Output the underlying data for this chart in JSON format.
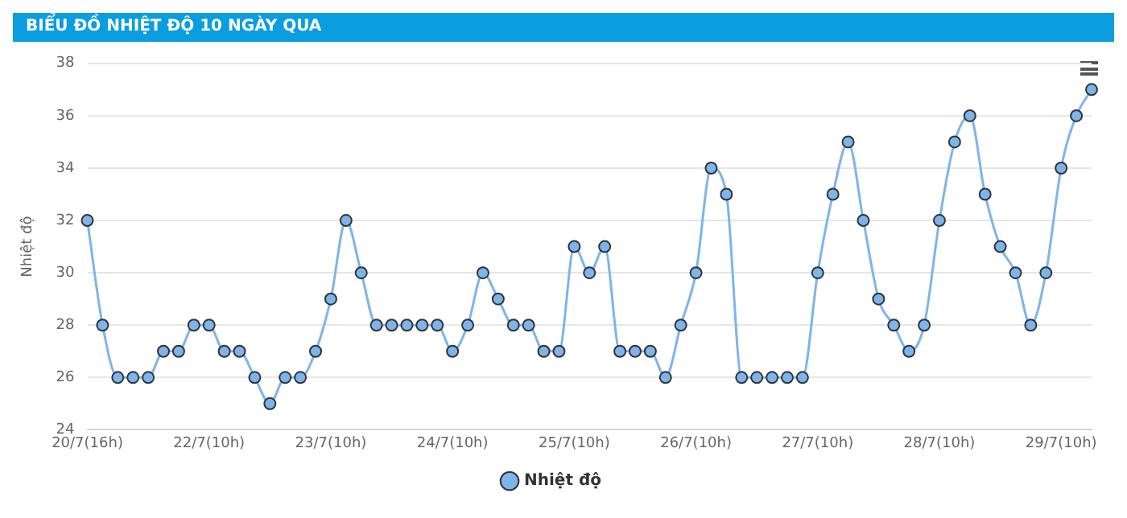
{
  "chart_data": {
    "type": "line",
    "title": "BIỂU ĐỒ NHIỆT ĐỘ 10 NGÀY QUA",
    "ylabel": "Nhiệt độ",
    "categories": [
      "20/7(16h)",
      null,
      null,
      null,
      null,
      null,
      null,
      null,
      "22/7(10h)",
      null,
      null,
      null,
      null,
      null,
      null,
      null,
      "23/7(10h)",
      null,
      null,
      null,
      null,
      null,
      null,
      null,
      "24/7(10h)",
      null,
      null,
      null,
      null,
      null,
      null,
      null,
      "25/7(10h)",
      null,
      null,
      null,
      null,
      null,
      null,
      null,
      "26/7(10h)",
      null,
      null,
      null,
      null,
      null,
      null,
      null,
      "27/7(10h)",
      null,
      null,
      null,
      null,
      null,
      null,
      null,
      "28/7(10h)",
      null,
      null,
      null,
      null,
      null,
      null,
      null,
      "29/7(10h)",
      null,
      null
    ],
    "series": [
      {
        "name": "Nhiệt độ",
        "color": "#7cb5ec",
        "values": [
          32,
          28,
          26,
          26,
          26,
          27,
          27,
          28,
          28,
          27,
          27,
          26,
          25,
          26,
          26,
          27,
          29,
          32,
          30,
          28,
          28,
          28,
          28,
          28,
          27,
          28,
          30,
          29,
          28,
          28,
          27,
          27,
          31,
          30,
          31,
          27,
          27,
          27,
          26,
          28,
          30,
          34,
          33,
          26,
          26,
          26,
          26,
          26,
          30,
          33,
          35,
          32,
          29,
          28,
          27,
          28,
          32,
          35,
          36,
          33,
          31,
          30,
          28,
          30,
          34,
          36,
          37
        ]
      }
    ],
    "ylim": [
      24,
      38
    ],
    "yticks": [
      24,
      26,
      28,
      30,
      32,
      34,
      36,
      38
    ],
    "grid": "y",
    "legend": "bottom",
    "marker": "circle",
    "line_style": "solid"
  }
}
